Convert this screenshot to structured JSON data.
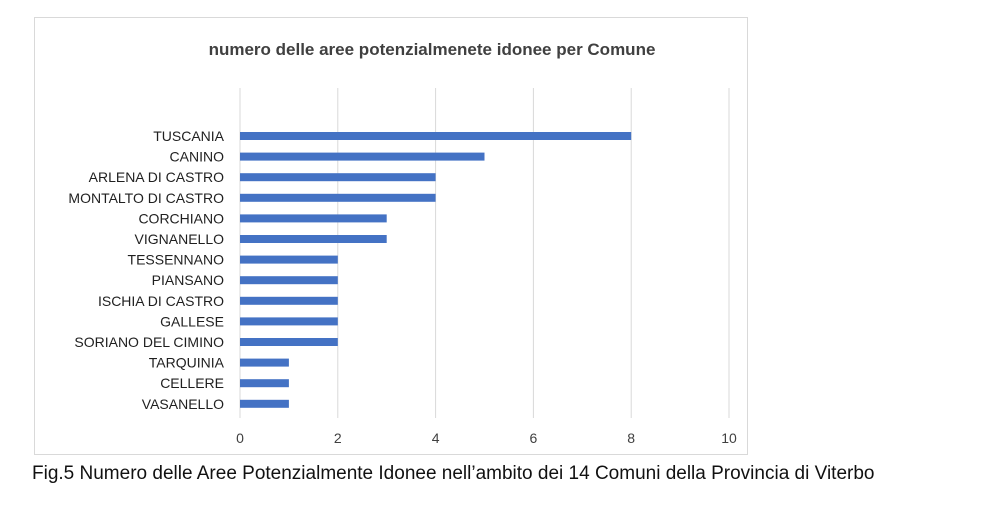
{
  "chart_data": {
    "type": "bar",
    "orientation": "horizontal",
    "title": "numero delle aree potenzialmenete idonee  per Comune",
    "categories": [
      "TUSCANIA",
      "CANINO",
      "ARLENA DI CASTRO",
      "MONTALTO DI CASTRO",
      "CORCHIANO",
      "VIGNANELLO",
      "TESSENNANO",
      "PIANSANO",
      "ISCHIA DI CASTRO",
      "GALLESE",
      "SORIANO DEL CIMINO",
      "TARQUINIA",
      "CELLERE",
      "VASANELLO"
    ],
    "values": [
      8,
      5,
      4,
      4,
      3,
      3,
      2,
      2,
      2,
      2,
      2,
      1,
      1,
      1
    ],
    "xlim": [
      0,
      10
    ],
    "xticks": [
      "0",
      "2",
      "4",
      "6",
      "8",
      "10"
    ],
    "grid": true,
    "legend": "none",
    "bar_color": "#4472c4"
  },
  "caption": "Fig.5 Numero delle Aree Potenzialmente Idonee nell’ambito dei 14 Comuni della Provincia di Viterbo"
}
